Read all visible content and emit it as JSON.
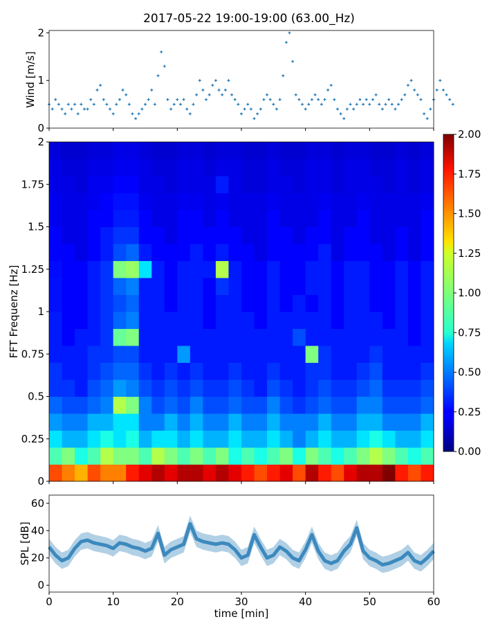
{
  "chart_data": [
    {
      "type": "scatter",
      "title": "2017-05-22 19:00-19:00 (63.00_Hz)",
      "ylabel": "Wind [m/s]",
      "xlim": [
        0,
        60
      ],
      "ylim": [
        0,
        2.05
      ],
      "yticks": [
        "0",
        "1",
        "2"
      ],
      "marker": "+",
      "color": "#1f77b4",
      "x_step_min": 0.5,
      "values": [
        0.5,
        0.4,
        0.6,
        0.5,
        0.4,
        0.3,
        0.5,
        0.4,
        0.5,
        0.3,
        0.5,
        0.4,
        0.4,
        0.6,
        0.5,
        0.8,
        0.9,
        0.6,
        0.5,
        0.4,
        0.3,
        0.5,
        0.6,
        0.8,
        0.7,
        0.5,
        0.3,
        0.2,
        0.3,
        0.4,
        0.5,
        0.6,
        0.8,
        0.5,
        1.1,
        1.6,
        1.3,
        0.6,
        0.4,
        0.5,
        0.6,
        0.5,
        0.6,
        0.4,
        0.3,
        0.5,
        0.7,
        1.0,
        0.8,
        0.6,
        0.7,
        0.9,
        1.0,
        0.8,
        0.7,
        0.8,
        1.0,
        0.7,
        0.6,
        0.5,
        0.3,
        0.4,
        0.5,
        0.4,
        0.2,
        0.3,
        0.4,
        0.6,
        0.7,
        0.6,
        0.5,
        0.4,
        0.6,
        1.1,
        1.8,
        2.0,
        1.4,
        0.7,
        0.6,
        0.5,
        0.4,
        0.5,
        0.6,
        0.7,
        0.6,
        0.5,
        0.6,
        0.8,
        0.9,
        0.6,
        0.4,
        0.3,
        0.2,
        0.4,
        0.5,
        0.4,
        0.5,
        0.6,
        0.5,
        0.6,
        0.5,
        0.6,
        0.7,
        0.5,
        0.4,
        0.5,
        0.6,
        0.5,
        0.4,
        0.5,
        0.6,
        0.7,
        0.9,
        1.0,
        0.8,
        0.7,
        0.6,
        0.3,
        0.2,
        0.4,
        0.6,
        0.8,
        1.0,
        0.8,
        0.7,
        0.6,
        0.5
      ],
      "axis_id": "wind"
    },
    {
      "type": "heatmap",
      "ylabel": "FFT Frequenz [Hz]",
      "xlim": [
        0,
        60
      ],
      "ylim": [
        0,
        2
      ],
      "yticks": [
        "0",
        "0.25",
        "0.5",
        "0.75",
        "1",
        "1.25",
        "1.5",
        "1.75",
        "2"
      ],
      "x_bin_min": 2,
      "y_bin_hz": 0.1,
      "colormap": "jet",
      "clim": [
        0,
        2
      ],
      "colorbar_ticks": [
        "0.00",
        "0.25",
        "0.50",
        "0.75",
        "1.00",
        "1.25",
        "1.50",
        "1.75",
        "2.00"
      ],
      "rows_low_to_high_freq": [
        [
          1.6,
          1.5,
          1.4,
          1.6,
          1.5,
          1.5,
          1.7,
          1.8,
          1.9,
          1.8,
          1.9,
          1.9,
          1.8,
          1.9,
          1.8,
          1.7,
          1.6,
          1.7,
          1.8,
          1.6,
          1.9,
          1.7,
          1.6,
          1.8,
          1.9,
          1.9,
          2.0,
          1.7,
          1.6,
          1.7
        ],
        [
          0.9,
          1.0,
          0.8,
          0.9,
          1.1,
          1.0,
          1.0,
          0.9,
          1.1,
          1.0,
          0.9,
          1.0,
          0.9,
          1.0,
          0.8,
          0.9,
          0.8,
          0.9,
          1.0,
          0.8,
          1.0,
          0.9,
          0.8,
          0.9,
          1.0,
          1.1,
          1.0,
          0.9,
          0.8,
          0.9
        ],
        [
          0.7,
          0.6,
          0.6,
          0.7,
          0.8,
          0.7,
          0.8,
          0.6,
          0.7,
          0.7,
          0.6,
          0.7,
          0.6,
          0.6,
          0.7,
          0.6,
          0.6,
          0.7,
          0.6,
          0.5,
          0.6,
          0.7,
          0.6,
          0.6,
          0.7,
          0.8,
          0.7,
          0.6,
          0.6,
          0.7
        ],
        [
          0.55,
          0.5,
          0.5,
          0.6,
          0.6,
          0.7,
          0.7,
          0.5,
          0.5,
          0.6,
          0.5,
          0.6,
          0.5,
          0.5,
          0.6,
          0.5,
          0.5,
          0.6,
          0.5,
          0.5,
          0.5,
          0.6,
          0.5,
          0.5,
          0.6,
          0.6,
          0.5,
          0.5,
          0.5,
          0.6
        ],
        [
          0.45,
          0.4,
          0.4,
          0.45,
          0.5,
          1.1,
          1.0,
          0.5,
          0.4,
          0.45,
          0.4,
          0.5,
          0.4,
          0.4,
          0.45,
          0.4,
          0.4,
          0.5,
          0.4,
          0.35,
          0.4,
          0.45,
          0.4,
          0.4,
          0.5,
          0.5,
          0.4,
          0.4,
          0.4,
          0.45
        ],
        [
          0.35,
          0.35,
          0.3,
          0.4,
          0.45,
          0.55,
          0.5,
          0.4,
          0.35,
          0.4,
          0.35,
          0.4,
          0.35,
          0.35,
          0.4,
          0.35,
          0.3,
          0.4,
          0.35,
          0.3,
          0.35,
          0.4,
          0.35,
          0.35,
          0.4,
          0.45,
          0.35,
          0.35,
          0.35,
          0.4
        ],
        [
          0.35,
          0.3,
          0.3,
          0.35,
          0.4,
          0.45,
          0.45,
          0.35,
          0.3,
          0.35,
          0.3,
          0.35,
          0.3,
          0.3,
          0.35,
          0.3,
          0.3,
          0.35,
          0.3,
          0.3,
          0.35,
          0.35,
          0.3,
          0.3,
          0.35,
          0.4,
          0.3,
          0.3,
          0.3,
          0.35
        ],
        [
          0.3,
          0.3,
          0.3,
          0.35,
          0.35,
          0.4,
          0.4,
          0.3,
          0.3,
          0.3,
          0.55,
          0.3,
          0.3,
          0.3,
          0.3,
          0.3,
          0.3,
          0.3,
          0.3,
          0.3,
          1.0,
          0.35,
          0.3,
          0.3,
          0.3,
          0.35,
          0.3,
          0.3,
          0.3,
          0.3
        ],
        [
          0.3,
          0.25,
          0.3,
          0.3,
          0.35,
          0.95,
          1.0,
          0.3,
          0.3,
          0.3,
          0.3,
          0.3,
          0.3,
          0.3,
          0.3,
          0.3,
          0.3,
          0.3,
          0.3,
          0.4,
          0.3,
          0.3,
          0.3,
          0.3,
          0.3,
          0.3,
          0.3,
          0.3,
          0.25,
          0.3
        ],
        [
          0.3,
          0.25,
          0.25,
          0.3,
          0.35,
          0.45,
          0.5,
          0.3,
          0.3,
          0.3,
          0.3,
          0.3,
          0.25,
          0.3,
          0.3,
          0.3,
          0.25,
          0.3,
          0.3,
          0.3,
          0.3,
          0.3,
          0.25,
          0.3,
          0.3,
          0.3,
          0.25,
          0.3,
          0.25,
          0.3
        ],
        [
          0.28,
          0.25,
          0.25,
          0.3,
          0.35,
          0.4,
          0.45,
          0.3,
          0.3,
          0.25,
          0.3,
          0.3,
          0.25,
          0.3,
          0.3,
          0.25,
          0.25,
          0.3,
          0.25,
          0.3,
          0.25,
          0.3,
          0.25,
          0.3,
          0.3,
          0.25,
          0.25,
          0.3,
          0.25,
          0.3
        ],
        [
          0.28,
          0.25,
          0.25,
          0.3,
          0.35,
          0.45,
          0.5,
          0.3,
          0.3,
          0.25,
          0.3,
          0.3,
          0.25,
          0.35,
          0.3,
          0.25,
          0.25,
          0.3,
          0.25,
          0.25,
          0.3,
          0.3,
          0.25,
          0.3,
          0.3,
          0.25,
          0.25,
          0.3,
          0.25,
          0.3
        ],
        [
          0.27,
          0.25,
          0.25,
          0.3,
          0.35,
          1.0,
          1.05,
          0.7,
          0.3,
          0.25,
          0.3,
          0.3,
          0.3,
          1.1,
          0.3,
          0.25,
          0.25,
          0.3,
          0.25,
          0.25,
          0.3,
          0.3,
          0.25,
          0.3,
          0.3,
          0.25,
          0.25,
          0.3,
          0.25,
          0.3
        ],
        [
          0.25,
          0.25,
          0.2,
          0.25,
          0.3,
          0.4,
          0.45,
          0.3,
          0.25,
          0.25,
          0.25,
          0.3,
          0.25,
          0.3,
          0.25,
          0.25,
          0.2,
          0.25,
          0.25,
          0.25,
          0.25,
          0.3,
          0.2,
          0.25,
          0.25,
          0.25,
          0.2,
          0.25,
          0.2,
          0.25
        ],
        [
          0.25,
          0.2,
          0.2,
          0.25,
          0.3,
          0.35,
          0.35,
          0.25,
          0.25,
          0.2,
          0.25,
          0.25,
          0.25,
          0.25,
          0.25,
          0.2,
          0.2,
          0.25,
          0.25,
          0.2,
          0.25,
          0.25,
          0.2,
          0.25,
          0.25,
          0.2,
          0.2,
          0.25,
          0.2,
          0.25
        ],
        [
          0.22,
          0.2,
          0.2,
          0.25,
          0.25,
          0.3,
          0.3,
          0.25,
          0.2,
          0.2,
          0.25,
          0.25,
          0.2,
          0.25,
          0.2,
          0.2,
          0.2,
          0.25,
          0.2,
          0.2,
          0.2,
          0.25,
          0.2,
          0.2,
          0.25,
          0.2,
          0.2,
          0.2,
          0.2,
          0.25
        ],
        [
          0.22,
          0.2,
          0.2,
          0.22,
          0.25,
          0.28,
          0.28,
          0.22,
          0.2,
          0.2,
          0.22,
          0.22,
          0.2,
          0.22,
          0.2,
          0.2,
          0.2,
          0.22,
          0.2,
          0.2,
          0.2,
          0.22,
          0.2,
          0.2,
          0.22,
          0.2,
          0.2,
          0.2,
          0.2,
          0.22
        ],
        [
          0.2,
          0.2,
          0.18,
          0.22,
          0.22,
          0.25,
          0.25,
          0.2,
          0.2,
          0.18,
          0.2,
          0.2,
          0.2,
          0.3,
          0.2,
          0.18,
          0.18,
          0.2,
          0.2,
          0.18,
          0.2,
          0.2,
          0.18,
          0.2,
          0.2,
          0.2,
          0.18,
          0.2,
          0.18,
          0.2
        ],
        [
          0.2,
          0.18,
          0.18,
          0.2,
          0.2,
          0.22,
          0.22,
          0.2,
          0.18,
          0.18,
          0.2,
          0.2,
          0.18,
          0.2,
          0.2,
          0.18,
          0.18,
          0.2,
          0.18,
          0.18,
          0.2,
          0.2,
          0.18,
          0.2,
          0.2,
          0.18,
          0.18,
          0.2,
          0.18,
          0.2
        ],
        [
          0.18,
          0.16,
          0.16,
          0.18,
          0.18,
          0.2,
          0.2,
          0.18,
          0.16,
          0.16,
          0.18,
          0.18,
          0.16,
          0.18,
          0.18,
          0.16,
          0.16,
          0.18,
          0.16,
          0.16,
          0.18,
          0.18,
          0.16,
          0.18,
          0.18,
          0.16,
          0.16,
          0.18,
          0.16,
          0.18
        ]
      ],
      "axis_id": "spec"
    },
    {
      "type": "line",
      "xlabel": "time [min]",
      "ylabel": "SPL [dB]",
      "xlim": [
        0,
        60
      ],
      "ylim": [
        -5,
        66
      ],
      "xticks": [
        "0",
        "10",
        "20",
        "30",
        "40",
        "50",
        "60"
      ],
      "yticks": [
        "0",
        "20",
        "40",
        "60"
      ],
      "color": "#1f77b4",
      "x_step_min": 1,
      "values": [
        28,
        22,
        18,
        20,
        27,
        32,
        33,
        31,
        30,
        29,
        27,
        31,
        30,
        28,
        27,
        25,
        27,
        38,
        22,
        26,
        28,
        30,
        45,
        34,
        32,
        31,
        30,
        31,
        30,
        26,
        20,
        22,
        37,
        28,
        20,
        22,
        28,
        25,
        20,
        18,
        26,
        37,
        25,
        18,
        16,
        18,
        25,
        30,
        42,
        25,
        20,
        18,
        15,
        16,
        18,
        20,
        24,
        18,
        16,
        20,
        25
      ],
      "axis_id": "spl"
    }
  ]
}
